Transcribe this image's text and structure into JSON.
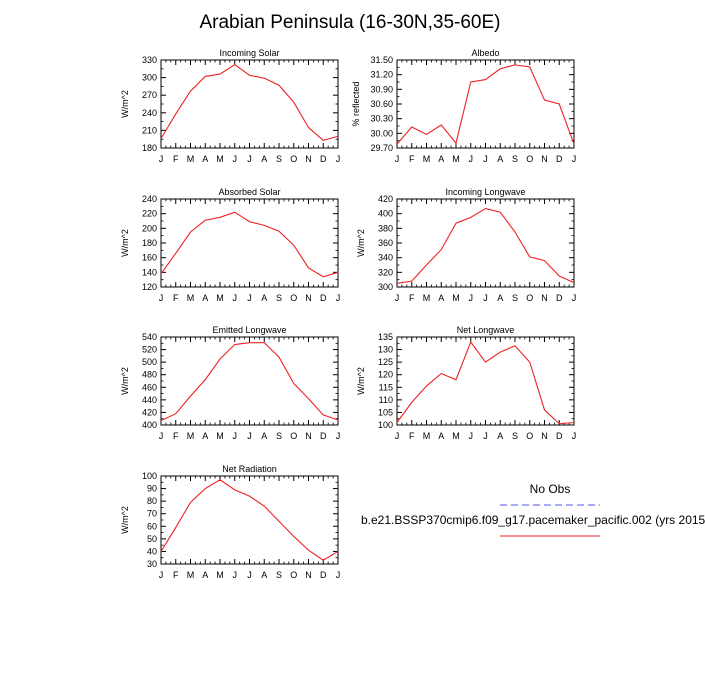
{
  "title": "Arabian Peninsula (16-30N,35-60E)",
  "legend": {
    "obs_label": "No Obs",
    "obs_color": "#7777ee",
    "model_label": "b.e21.BSSP370cmip6.f09_g17.pacemaker_pacific.002 (yrs 2015",
    "model_color": "#ee2222"
  },
  "chart_data": [
    {
      "type": "line",
      "title": "Incoming Solar",
      "ylabel": "W/m^2",
      "x": [
        "J",
        "F",
        "M",
        "A",
        "M",
        "J",
        "J",
        "A",
        "S",
        "O",
        "N",
        "D",
        "J"
      ],
      "ylim": [
        180,
        330
      ],
      "yticks": [
        "180",
        "210",
        "240",
        "270",
        "300",
        "330"
      ],
      "series": [
        {
          "values": [
            196,
            238,
            277,
            302,
            306,
            322,
            304,
            299,
            287,
            258,
            215,
            193,
            200
          ]
        }
      ]
    },
    {
      "type": "line",
      "title": "Albedo",
      "ylabel": "% reflected",
      "x": [
        "J",
        "F",
        "M",
        "A",
        "M",
        "J",
        "J",
        "A",
        "S",
        "O",
        "N",
        "D",
        "J"
      ],
      "ylim": [
        29.7,
        31.5
      ],
      "yticks": [
        "29.70",
        "30.00",
        "30.30",
        "30.60",
        "30.90",
        "31.20",
        "31.50"
      ],
      "series": [
        {
          "values": [
            29.78,
            30.13,
            29.98,
            30.17,
            29.8,
            31.05,
            31.1,
            31.32,
            31.4,
            31.36,
            30.68,
            30.6,
            29.78
          ]
        }
      ]
    },
    {
      "type": "line",
      "title": "Absorbed Solar",
      "ylabel": "W/m^2",
      "x": [
        "J",
        "F",
        "M",
        "A",
        "M",
        "J",
        "J",
        "A",
        "S",
        "O",
        "N",
        "D",
        "J"
      ],
      "ylim": [
        120,
        240
      ],
      "yticks": [
        "120",
        "140",
        "160",
        "180",
        "200",
        "220",
        "240"
      ],
      "series": [
        {
          "values": [
            138,
            166,
            195,
            211,
            215,
            222,
            209,
            204,
            196,
            177,
            146,
            134,
            140
          ]
        }
      ]
    },
    {
      "type": "line",
      "title": "Incoming Longwave",
      "ylabel": "W/m^2",
      "x": [
        "J",
        "F",
        "M",
        "A",
        "M",
        "J",
        "J",
        "A",
        "S",
        "O",
        "N",
        "D",
        "J"
      ],
      "ylim": [
        300,
        420
      ],
      "yticks": [
        "300",
        "320",
        "340",
        "360",
        "380",
        "400",
        "420"
      ],
      "series": [
        {
          "values": [
            305,
            308,
            330,
            351,
            387,
            395,
            407,
            402,
            375,
            341,
            336,
            315,
            306
          ]
        }
      ]
    },
    {
      "type": "line",
      "title": "Emitted Longwave",
      "ylabel": "W/m^2",
      "x": [
        "J",
        "F",
        "M",
        "A",
        "M",
        "J",
        "J",
        "A",
        "S",
        "O",
        "N",
        "D",
        "J"
      ],
      "ylim": [
        400,
        540
      ],
      "yticks": [
        "400",
        "420",
        "440",
        "460",
        "480",
        "500",
        "520",
        "540"
      ],
      "series": [
        {
          "values": [
            407,
            418,
            446,
            472,
            505,
            528,
            531,
            531,
            508,
            466,
            442,
            416,
            408
          ]
        }
      ]
    },
    {
      "type": "line",
      "title": "Net Longwave",
      "ylabel": "W/m^2",
      "x": [
        "J",
        "F",
        "M",
        "A",
        "M",
        "J",
        "J",
        "A",
        "S",
        "O",
        "N",
        "D",
        "J"
      ],
      "ylim": [
        100,
        135
      ],
      "yticks": [
        "100",
        "105",
        "110",
        "115",
        "120",
        "125",
        "130",
        "135"
      ],
      "series": [
        {
          "values": [
            101,
            109,
            115.5,
            120.5,
            118,
            133,
            125,
            129,
            131.5,
            125,
            106,
            100.5,
            101
          ]
        }
      ]
    },
    {
      "type": "line",
      "title": "Net Radiation",
      "ylabel": "W/m^2",
      "x": [
        "J",
        "F",
        "M",
        "A",
        "M",
        "J",
        "J",
        "A",
        "S",
        "O",
        "N",
        "D",
        "J"
      ],
      "ylim": [
        30,
        100
      ],
      "yticks": [
        "30",
        "40",
        "50",
        "60",
        "70",
        "80",
        "90",
        "100"
      ],
      "series": [
        {
          "values": [
            40,
            59,
            79,
            90,
            97,
            89,
            84,
            76,
            64,
            52,
            41,
            33,
            40
          ]
        }
      ]
    }
  ]
}
